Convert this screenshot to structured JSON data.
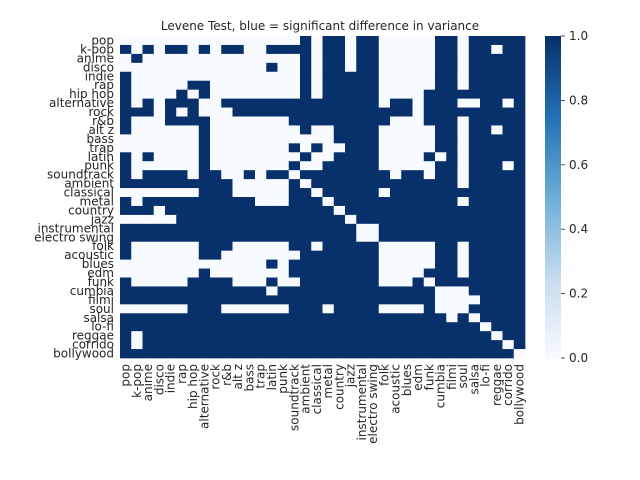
{
  "chart_data": {
    "type": "heatmap",
    "title": "Levene Test, blue = significant difference in variance",
    "xlabel": "",
    "ylabel": "",
    "categories": [
      "pop",
      "k-pop",
      "anime",
      "disco",
      "indie",
      "rap",
      "hip hop",
      "alternative",
      "rock",
      "r&b",
      "alt z",
      "bass",
      "trap",
      "latin",
      "punk",
      "soundtrack",
      "ambient",
      "classical",
      "metal",
      "country",
      "jazz",
      "instrumental",
      "electro swing",
      "folk",
      "acoustic",
      "blues",
      "edm",
      "funk",
      "cumbia",
      "filmi",
      "soul",
      "salsa",
      "lo-fi",
      "reggae",
      "corrido",
      "bollywood"
    ],
    "value_range": [
      0,
      1
    ],
    "colorbar": {
      "ticks": [
        "0.0",
        "0.2",
        "0.4",
        "0.6",
        "0.8",
        "1.0"
      ],
      "tick_values": [
        0,
        0.2,
        0.4,
        0.6,
        0.8,
        1.0
      ]
    },
    "colors": {
      "low": "#f7fbff",
      "mid": "#6baed6",
      "high": "#08306b"
    },
    "values": [
      [
        0,
        0,
        0,
        0,
        0,
        0,
        0,
        0,
        0,
        0,
        0,
        0,
        0,
        0,
        0,
        0,
        1,
        0,
        1,
        1,
        0,
        1,
        1,
        0,
        0,
        0,
        0,
        0,
        1,
        1,
        0,
        1,
        1,
        1,
        1,
        1
      ],
      [
        1,
        0,
        1,
        0,
        1,
        1,
        0,
        1,
        0,
        1,
        1,
        0,
        0,
        1,
        1,
        1,
        1,
        0,
        1,
        1,
        0,
        1,
        1,
        0,
        0,
        0,
        0,
        0,
        1,
        1,
        0,
        1,
        1,
        0,
        1,
        1
      ],
      [
        0,
        1,
        0,
        0,
        0,
        0,
        0,
        0,
        0,
        0,
        0,
        0,
        0,
        0,
        0,
        0,
        1,
        0,
        1,
        1,
        0,
        1,
        1,
        0,
        0,
        0,
        0,
        0,
        1,
        1,
        0,
        1,
        1,
        1,
        1,
        1
      ],
      [
        0,
        0,
        0,
        0,
        0,
        0,
        0,
        0,
        0,
        0,
        0,
        0,
        0,
        1,
        0,
        0,
        1,
        0,
        1,
        1,
        0,
        1,
        1,
        0,
        0,
        0,
        0,
        0,
        1,
        1,
        0,
        1,
        1,
        1,
        1,
        1
      ],
      [
        1,
        0,
        0,
        0,
        0,
        0,
        0,
        0,
        0,
        0,
        0,
        0,
        0,
        0,
        0,
        0,
        1,
        0,
        1,
        1,
        1,
        1,
        1,
        0,
        0,
        0,
        0,
        0,
        1,
        1,
        0,
        1,
        1,
        1,
        1,
        1
      ],
      [
        1,
        0,
        0,
        0,
        0,
        0,
        1,
        1,
        0,
        0,
        0,
        0,
        0,
        0,
        0,
        0,
        1,
        0,
        1,
        1,
        1,
        1,
        1,
        0,
        0,
        0,
        0,
        0,
        1,
        1,
        0,
        1,
        1,
        1,
        1,
        1
      ],
      [
        1,
        0,
        0,
        0,
        0,
        1,
        0,
        1,
        0,
        0,
        0,
        0,
        0,
        0,
        0,
        0,
        1,
        0,
        1,
        1,
        1,
        1,
        1,
        0,
        0,
        0,
        0,
        1,
        1,
        1,
        1,
        1,
        1,
        1,
        1,
        1
      ],
      [
        1,
        0,
        1,
        0,
        1,
        1,
        1,
        0,
        0,
        1,
        1,
        1,
        1,
        1,
        1,
        1,
        1,
        1,
        1,
        1,
        1,
        1,
        1,
        0,
        1,
        1,
        0,
        1,
        1,
        1,
        0,
        0,
        1,
        1,
        0,
        1
      ],
      [
        1,
        1,
        1,
        0,
        1,
        0,
        1,
        0,
        0,
        0,
        1,
        1,
        1,
        1,
        1,
        1,
        1,
        1,
        1,
        1,
        1,
        1,
        1,
        1,
        1,
        1,
        0,
        1,
        1,
        1,
        1,
        1,
        1,
        1,
        1,
        1
      ],
      [
        1,
        0,
        0,
        0,
        1,
        1,
        1,
        1,
        0,
        0,
        0,
        0,
        0,
        0,
        0,
        1,
        1,
        1,
        1,
        1,
        1,
        1,
        1,
        1,
        0,
        0,
        0,
        1,
        1,
        1,
        0,
        1,
        1,
        1,
        1,
        1
      ],
      [
        1,
        0,
        0,
        0,
        0,
        0,
        0,
        1,
        0,
        0,
        0,
        0,
        0,
        0,
        0,
        0,
        1,
        0,
        0,
        1,
        1,
        1,
        1,
        0,
        0,
        0,
        0,
        0,
        1,
        1,
        0,
        1,
        1,
        0,
        1,
        1
      ],
      [
        0,
        0,
        0,
        0,
        0,
        0,
        0,
        1,
        0,
        0,
        0,
        0,
        0,
        0,
        0,
        0,
        0,
        0,
        0,
        1,
        1,
        1,
        1,
        0,
        0,
        0,
        0,
        0,
        1,
        1,
        0,
        1,
        1,
        1,
        1,
        1
      ],
      [
        0,
        0,
        0,
        0,
        0,
        0,
        0,
        1,
        0,
        0,
        0,
        0,
        0,
        0,
        0,
        1,
        0,
        1,
        0,
        0,
        1,
        1,
        1,
        0,
        0,
        0,
        0,
        0,
        1,
        1,
        0,
        1,
        1,
        1,
        1,
        1
      ],
      [
        1,
        0,
        1,
        0,
        0,
        0,
        0,
        1,
        0,
        0,
        0,
        0,
        0,
        0,
        0,
        0,
        1,
        0,
        0,
        1,
        1,
        1,
        1,
        0,
        0,
        0,
        0,
        1,
        0,
        1,
        0,
        1,
        1,
        1,
        1,
        1
      ],
      [
        1,
        0,
        0,
        0,
        0,
        0,
        0,
        1,
        0,
        0,
        0,
        0,
        0,
        0,
        0,
        1,
        0,
        0,
        1,
        1,
        1,
        1,
        1,
        0,
        0,
        0,
        0,
        0,
        1,
        1,
        0,
        1,
        1,
        1,
        0,
        1
      ],
      [
        1,
        0,
        1,
        1,
        1,
        1,
        0,
        1,
        1,
        0,
        0,
        1,
        0,
        1,
        1,
        0,
        1,
        1,
        1,
        1,
        1,
        1,
        1,
        1,
        0,
        1,
        1,
        0,
        1,
        1,
        0,
        1,
        1,
        1,
        1,
        1
      ],
      [
        1,
        1,
        1,
        1,
        1,
        1,
        1,
        1,
        1,
        1,
        0,
        0,
        0,
        0,
        0,
        1,
        0,
        1,
        1,
        1,
        1,
        1,
        1,
        1,
        1,
        1,
        1,
        1,
        1,
        1,
        0,
        1,
        1,
        1,
        1,
        1
      ],
      [
        0,
        0,
        0,
        0,
        0,
        0,
        0,
        1,
        1,
        1,
        0,
        0,
        0,
        0,
        0,
        1,
        1,
        0,
        1,
        1,
        1,
        1,
        1,
        0,
        1,
        1,
        1,
        1,
        1,
        1,
        1,
        1,
        1,
        1,
        1,
        1
      ],
      [
        1,
        0,
        1,
        1,
        1,
        1,
        1,
        1,
        1,
        1,
        1,
        1,
        0,
        0,
        0,
        1,
        1,
        1,
        0,
        1,
        1,
        1,
        1,
        1,
        1,
        1,
        1,
        1,
        1,
        1,
        0,
        1,
        1,
        1,
        1,
        1
      ],
      [
        1,
        1,
        1,
        0,
        1,
        1,
        1,
        1,
        1,
        1,
        1,
        1,
        1,
        1,
        1,
        1,
        1,
        1,
        1,
        0,
        1,
        1,
        1,
        1,
        1,
        1,
        1,
        1,
        1,
        1,
        1,
        1,
        1,
        1,
        1,
        1
      ],
      [
        0,
        0,
        0,
        0,
        0,
        1,
        1,
        1,
        1,
        1,
        1,
        1,
        1,
        1,
        1,
        1,
        1,
        1,
        1,
        1,
        0,
        1,
        1,
        1,
        1,
        1,
        1,
        1,
        1,
        1,
        1,
        1,
        1,
        1,
        1,
        1
      ],
      [
        1,
        1,
        1,
        1,
        1,
        1,
        1,
        1,
        1,
        1,
        1,
        1,
        1,
        1,
        1,
        1,
        1,
        1,
        1,
        1,
        1,
        0,
        0,
        1,
        1,
        1,
        1,
        1,
        1,
        1,
        1,
        1,
        1,
        1,
        1,
        1
      ],
      [
        1,
        1,
        1,
        1,
        1,
        1,
        1,
        1,
        1,
        1,
        1,
        1,
        1,
        1,
        1,
        1,
        1,
        1,
        1,
        1,
        1,
        0,
        0,
        1,
        1,
        1,
        1,
        1,
        1,
        1,
        1,
        1,
        1,
        1,
        1,
        1
      ],
      [
        1,
        0,
        0,
        0,
        0,
        0,
        0,
        1,
        1,
        1,
        0,
        0,
        0,
        0,
        0,
        1,
        1,
        0,
        1,
        1,
        1,
        1,
        1,
        0,
        0,
        0,
        0,
        0,
        1,
        1,
        0,
        1,
        1,
        1,
        1,
        1
      ],
      [
        1,
        0,
        0,
        0,
        0,
        0,
        0,
        1,
        1,
        0,
        0,
        0,
        0,
        0,
        0,
        0,
        1,
        1,
        1,
        1,
        1,
        1,
        1,
        0,
        0,
        0,
        0,
        0,
        1,
        1,
        0,
        1,
        1,
        1,
        1,
        1
      ],
      [
        0,
        0,
        0,
        0,
        0,
        0,
        0,
        0,
        0,
        0,
        0,
        0,
        0,
        1,
        0,
        1,
        1,
        1,
        1,
        1,
        1,
        1,
        1,
        0,
        0,
        0,
        0,
        0,
        1,
        1,
        0,
        1,
        1,
        1,
        1,
        1
      ],
      [
        0,
        0,
        0,
        0,
        0,
        0,
        0,
        1,
        0,
        0,
        0,
        0,
        0,
        0,
        0,
        1,
        1,
        1,
        1,
        1,
        1,
        1,
        1,
        0,
        0,
        0,
        0,
        1,
        1,
        1,
        0,
        1,
        1,
        1,
        1,
        1
      ],
      [
        1,
        0,
        0,
        0,
        0,
        0,
        1,
        1,
        1,
        1,
        0,
        0,
        0,
        1,
        0,
        0,
        1,
        1,
        1,
        1,
        1,
        1,
        1,
        0,
        0,
        0,
        1,
        0,
        1,
        1,
        1,
        1,
        1,
        1,
        1,
        1
      ],
      [
        1,
        1,
        1,
        1,
        1,
        1,
        1,
        1,
        1,
        1,
        1,
        1,
        1,
        0,
        1,
        1,
        1,
        1,
        1,
        1,
        1,
        1,
        1,
        1,
        1,
        1,
        1,
        1,
        0,
        0,
        0,
        1,
        1,
        1,
        1,
        1
      ],
      [
        1,
        1,
        1,
        1,
        1,
        1,
        1,
        1,
        1,
        1,
        1,
        1,
        1,
        1,
        1,
        1,
        1,
        1,
        1,
        1,
        1,
        1,
        1,
        1,
        1,
        1,
        1,
        1,
        0,
        0,
        0,
        0,
        1,
        1,
        1,
        1
      ],
      [
        0,
        0,
        0,
        0,
        0,
        0,
        1,
        1,
        1,
        0,
        0,
        0,
        0,
        0,
        0,
        1,
        1,
        1,
        0,
        1,
        1,
        1,
        1,
        0,
        0,
        0,
        0,
        1,
        0,
        0,
        0,
        1,
        1,
        1,
        1,
        1
      ],
      [
        1,
        1,
        1,
        1,
        1,
        1,
        1,
        1,
        1,
        1,
        1,
        1,
        1,
        1,
        1,
        1,
        1,
        1,
        1,
        1,
        1,
        1,
        1,
        1,
        1,
        1,
        1,
        1,
        1,
        0,
        1,
        0,
        1,
        1,
        1,
        1
      ],
      [
        1,
        1,
        1,
        1,
        1,
        1,
        1,
        1,
        1,
        1,
        1,
        1,
        1,
        1,
        1,
        1,
        1,
        1,
        1,
        1,
        1,
        1,
        1,
        1,
        1,
        1,
        1,
        1,
        1,
        1,
        1,
        1,
        0,
        1,
        1,
        1
      ],
      [
        1,
        0,
        1,
        1,
        1,
        1,
        1,
        1,
        1,
        1,
        1,
        1,
        1,
        1,
        1,
        1,
        1,
        1,
        1,
        1,
        1,
        1,
        1,
        1,
        1,
        1,
        1,
        1,
        1,
        1,
        1,
        1,
        1,
        0,
        1,
        1
      ],
      [
        1,
        0,
        1,
        1,
        1,
        1,
        1,
        1,
        1,
        1,
        1,
        1,
        1,
        1,
        1,
        1,
        1,
        1,
        1,
        1,
        1,
        1,
        1,
        1,
        1,
        1,
        1,
        1,
        1,
        1,
        1,
        1,
        1,
        1,
        0,
        1
      ],
      [
        1,
        1,
        1,
        1,
        1,
        1,
        1,
        1,
        1,
        1,
        1,
        1,
        1,
        1,
        1,
        1,
        1,
        1,
        1,
        1,
        1,
        1,
        1,
        1,
        1,
        1,
        1,
        1,
        1,
        1,
        1,
        1,
        1,
        1,
        1,
        0
      ]
    ]
  }
}
